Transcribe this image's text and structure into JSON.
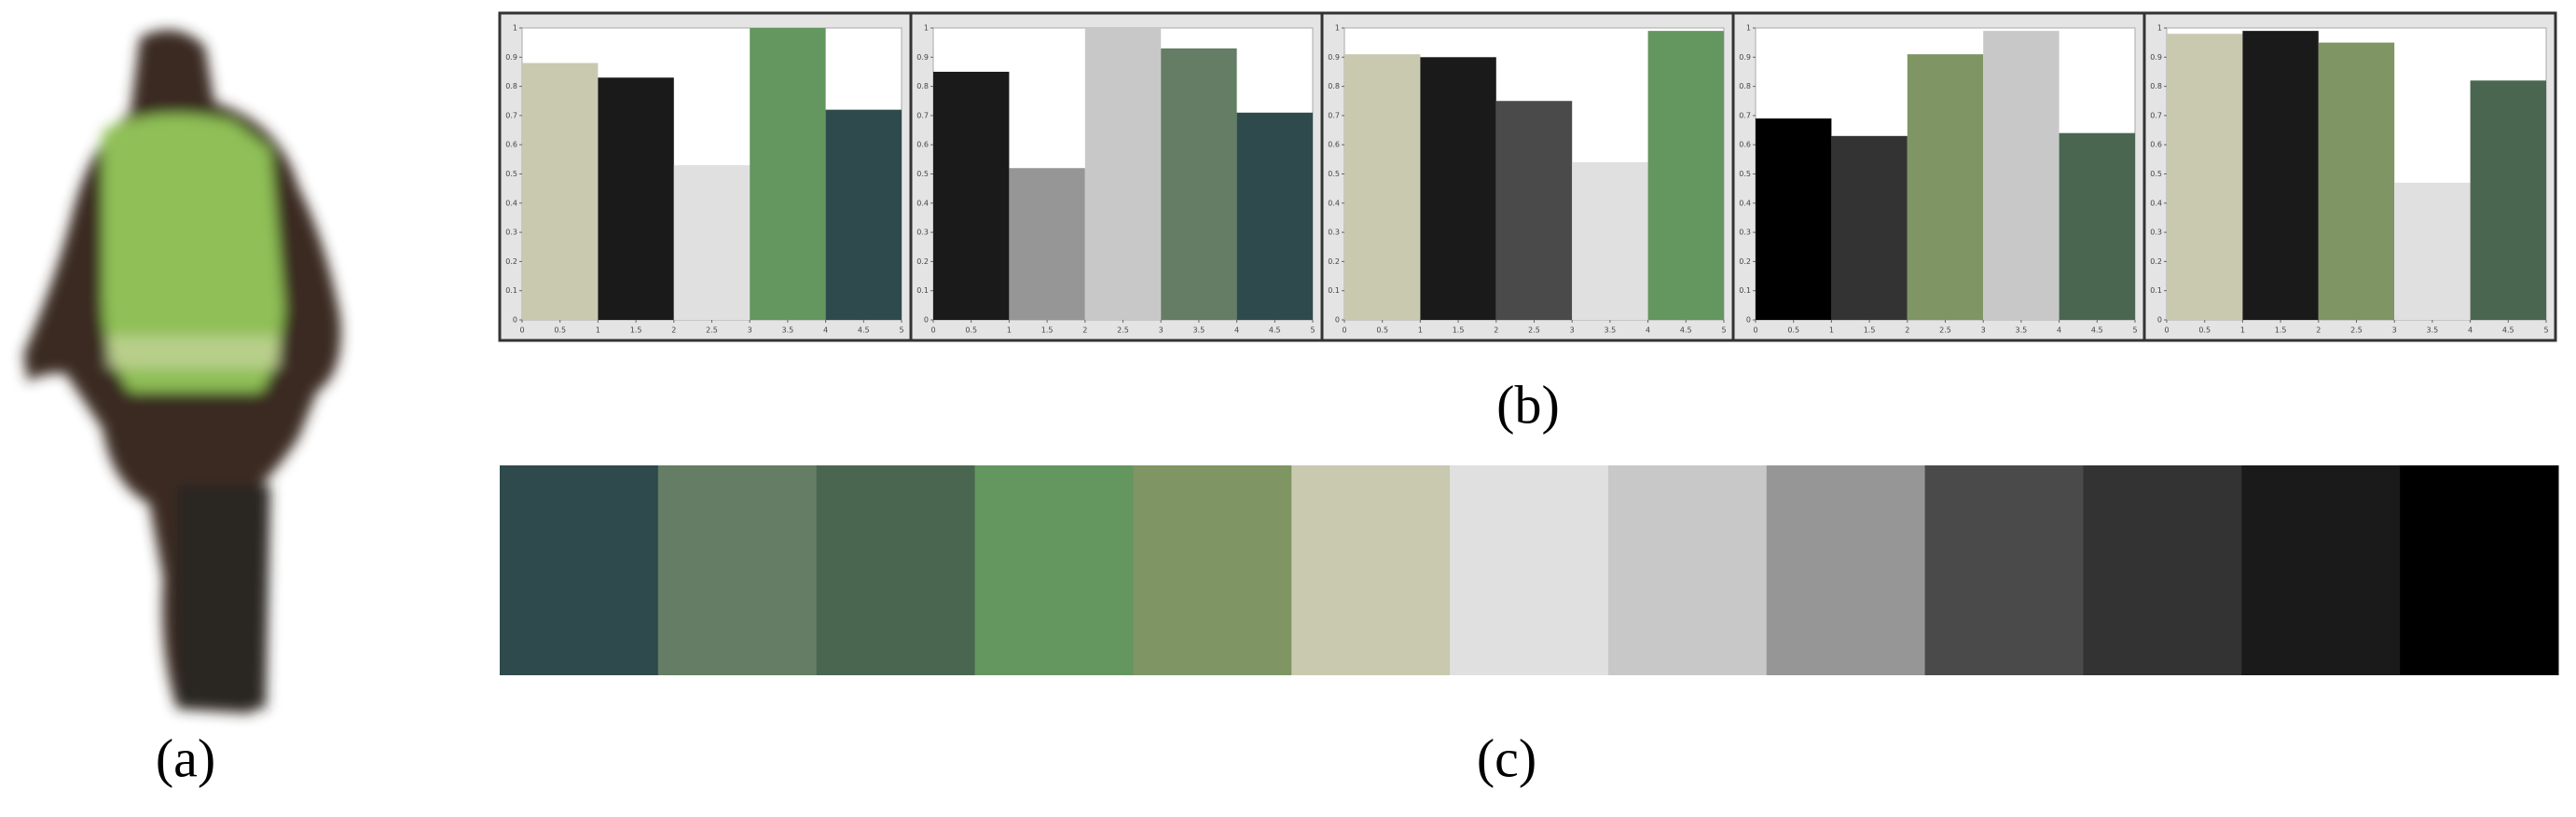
{
  "chart_data": [
    {
      "type": "histogram",
      "bins": [
        0,
        1,
        2,
        3,
        4,
        5
      ],
      "values": [
        0.88,
        0.83,
        0.53,
        1.0,
        0.72
      ],
      "colors": [
        "#c9c9b0",
        "#1a1a1a",
        "#e0e0e0",
        "#64965f",
        "#2f4a4c"
      ],
      "xlim": [
        0,
        5
      ],
      "ylim": [
        0,
        1
      ],
      "xticks": [
        0,
        0.5,
        1,
        1.5,
        2,
        2.5,
        3,
        3.5,
        4,
        4.5,
        5
      ],
      "yticks": [
        0,
        0.1,
        0.2,
        0.3,
        0.4,
        0.5,
        0.6,
        0.7,
        0.8,
        0.9,
        1
      ]
    },
    {
      "type": "histogram",
      "bins": [
        0,
        1,
        2,
        3,
        4,
        5
      ],
      "values": [
        0.85,
        0.52,
        1.0,
        0.93,
        0.71
      ],
      "colors": [
        "#1a1a1a",
        "#969696",
        "#c8c8c8",
        "#647d64",
        "#2f4a4c"
      ],
      "xlim": [
        0,
        5
      ],
      "ylim": [
        0,
        1
      ],
      "xticks": [
        0,
        0.5,
        1,
        1.5,
        2,
        2.5,
        3,
        3.5,
        4,
        4.5,
        5
      ],
      "yticks": [
        0,
        0.1,
        0.2,
        0.3,
        0.4,
        0.5,
        0.6,
        0.7,
        0.8,
        0.9,
        1
      ]
    },
    {
      "type": "histogram",
      "bins": [
        0,
        1,
        2,
        3,
        4,
        5
      ],
      "values": [
        0.91,
        0.9,
        0.75,
        0.54,
        0.99
      ],
      "colors": [
        "#c9c9b0",
        "#1a1a1a",
        "#4a4a4a",
        "#e0e0e0",
        "#64965f"
      ],
      "xlim": [
        0,
        5
      ],
      "ylim": [
        0,
        1
      ],
      "xticks": [
        0,
        0.5,
        1,
        1.5,
        2,
        2.5,
        3,
        3.5,
        4,
        4.5,
        5
      ],
      "yticks": [
        0,
        0.1,
        0.2,
        0.3,
        0.4,
        0.5,
        0.6,
        0.7,
        0.8,
        0.9,
        1
      ]
    },
    {
      "type": "histogram",
      "bins": [
        0,
        1,
        2,
        3,
        4,
        5
      ],
      "values": [
        0.69,
        0.63,
        0.91,
        0.99,
        0.64
      ],
      "colors": [
        "#000000",
        "#333333",
        "#7f9563",
        "#c8c8c8",
        "#4a6650"
      ],
      "xlim": [
        0,
        5
      ],
      "ylim": [
        0,
        1
      ],
      "xticks": [
        0,
        0.5,
        1,
        1.5,
        2,
        2.5,
        3,
        3.5,
        4,
        4.5,
        5
      ],
      "yticks": [
        0,
        0.1,
        0.2,
        0.3,
        0.4,
        0.5,
        0.6,
        0.7,
        0.8,
        0.9,
        1
      ]
    },
    {
      "type": "histogram",
      "bins": [
        0,
        1,
        2,
        3,
        4,
        5
      ],
      "values": [
        0.98,
        0.99,
        0.95,
        0.47,
        0.82
      ],
      "colors": [
        "#c9c9b0",
        "#1a1a1a",
        "#7f9563",
        "#e0e0e0",
        "#4a6650"
      ],
      "xlim": [
        0,
        5
      ],
      "ylim": [
        0,
        1
      ],
      "xticks": [
        0,
        0.5,
        1,
        1.5,
        2,
        2.5,
        3,
        3.5,
        4,
        4.5,
        5
      ],
      "yticks": [
        0,
        0.1,
        0.2,
        0.3,
        0.4,
        0.5,
        0.6,
        0.7,
        0.8,
        0.9,
        1
      ]
    }
  ],
  "palette": [
    "#2f4a4c",
    "#647d64",
    "#4a6650",
    "#64965f",
    "#7f9563",
    "#c9c9b0",
    "#e0e0e0",
    "#c8c8c8",
    "#969696",
    "#4a4a4a",
    "#333333",
    "#1a1a1a",
    "#000000"
  ],
  "captions": {
    "a": "(a)",
    "b": "(b)",
    "c": "(c)"
  }
}
